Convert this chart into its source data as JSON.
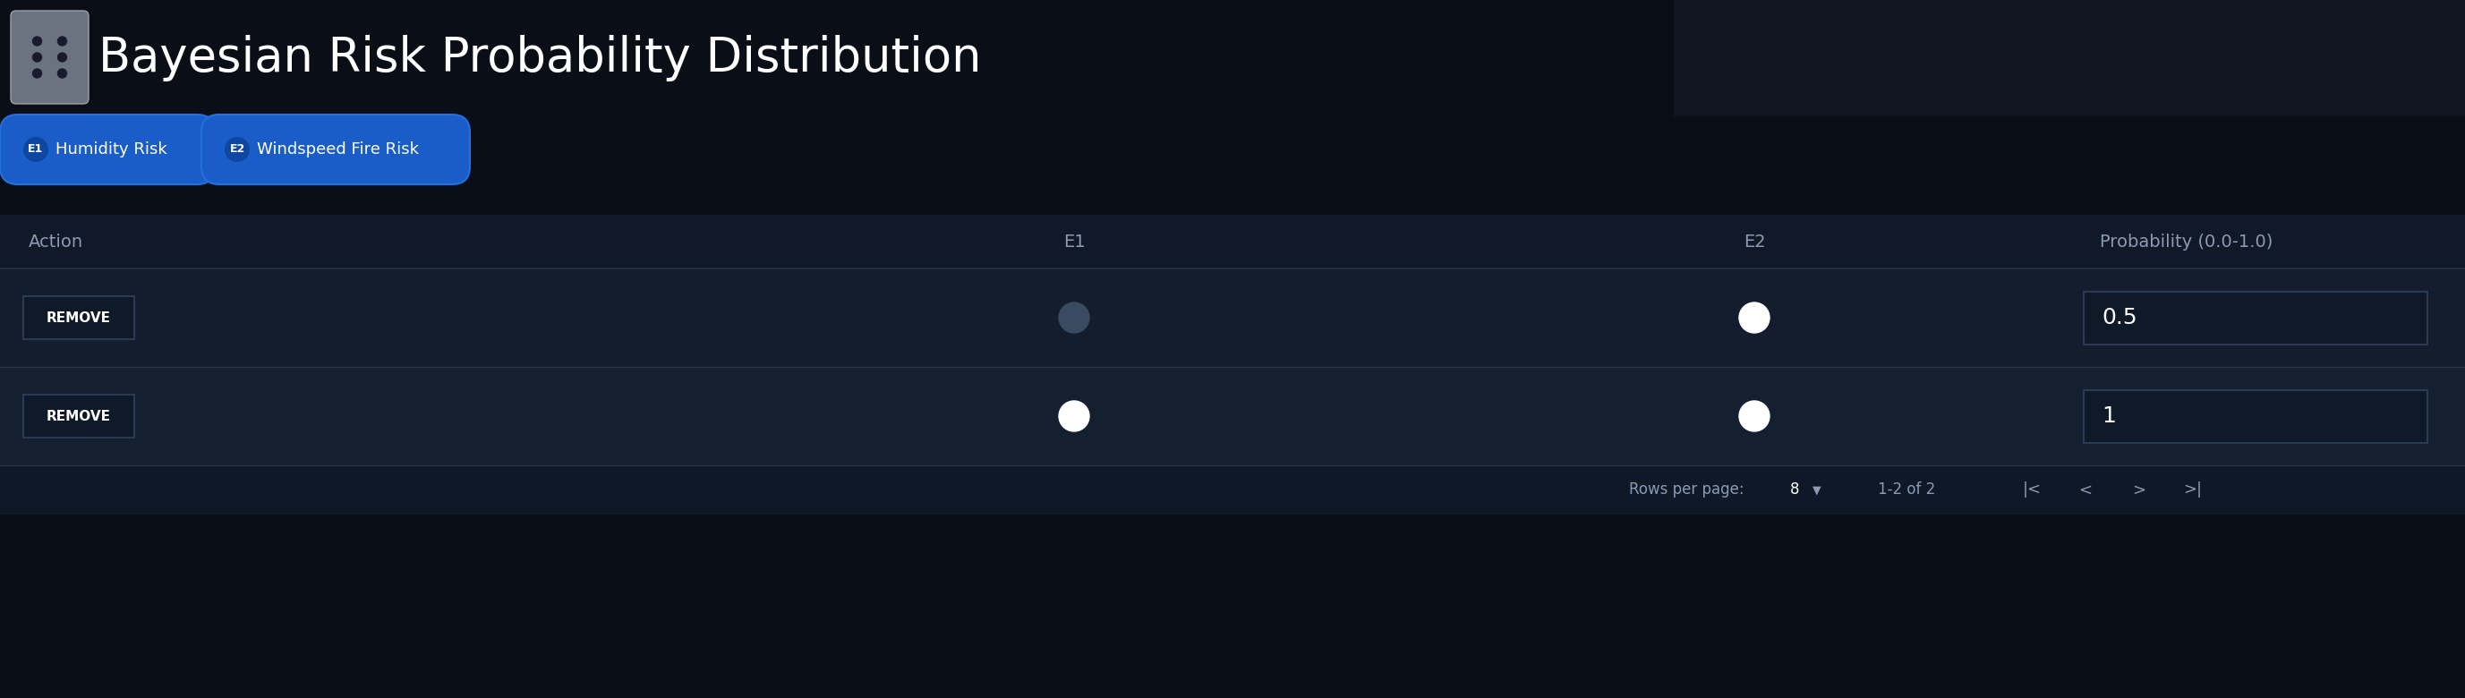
{
  "title": "Bayesian Risk Probability Distribution",
  "bg_color": "#0a0e17",
  "table_bg": "#141e2e",
  "header_bg": "#111827",
  "row1_bg": "#131d2d",
  "row2_bg": "#141f30",
  "footer_bg": "#0f1826",
  "separator_color": "#253347",
  "text_color": "#ffffff",
  "subtext_color": "#8a9bb5",
  "chip_color": "#1a5dc8",
  "chip_border_color": "#2470e0",
  "chip1_e_label": "E1",
  "chip1_label": "Humidity Risk",
  "chip2_e_label": "E2",
  "chip2_label": "Windspeed Fire Risk",
  "col_action": "Action",
  "col_e1": "E1",
  "col_e2": "E2",
  "col_prob": "Probability (0.0-1.0)",
  "rows": [
    {
      "e1_filled": false,
      "e2_filled": true,
      "prob": "0.5"
    },
    {
      "e1_filled": true,
      "e2_filled": true,
      "prob": "1"
    }
  ],
  "footer_text": "Rows per page:",
  "footer_rows": "8",
  "footer_range": "1-2 of 2",
  "button_color": "#0f1a28",
  "button_border": "#2a3a54",
  "remove_text": "REMOVE",
  "circle_filled_color": "#ffffff",
  "circle_empty_color": "#3a4a60",
  "input_bg": "#0e1a28",
  "input_border": "#2a3a54",
  "icon_bg": "#6b7280",
  "icon_border": "#9ca3af",
  "dark_right_bg": "#1a1f2e"
}
